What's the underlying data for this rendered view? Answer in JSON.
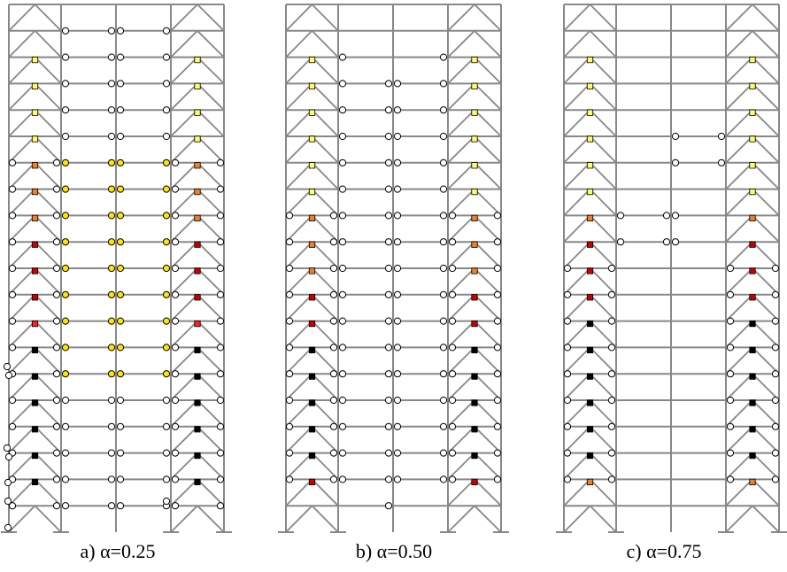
{
  "colors": {
    "frame": "#888888",
    "hinge_elastic": "#ffffff",
    "hinge_yield": "#ffe600",
    "brace_light": "#ffff66",
    "brace_orange": "#f07f2a",
    "brace_dark_red": "#cc0000",
    "brace_red": "#ff2020",
    "brace_black": "#000000"
  },
  "panels": [
    {
      "caption": "a) α=0.25",
      "brace_states": [
        "none",
        "light",
        "light",
        "light",
        "light",
        "orange",
        "orange",
        "orange",
        "red",
        "red",
        "red",
        "bright",
        "black",
        "black",
        "black",
        "black",
        "black",
        "black",
        "orange"
      ],
      "beam_hinges": [
        "w",
        "w",
        "w",
        "w",
        "w",
        "y",
        "y",
        "y",
        "y",
        "y",
        "y",
        "y",
        "y",
        "y",
        "w",
        "w",
        "w",
        "w",
        "w"
      ],
      "brace_bay_hinges": [
        0,
        0,
        0,
        0,
        0,
        1,
        1,
        1,
        1,
        1,
        1,
        1,
        1,
        1,
        1,
        1,
        1,
        1,
        1
      ]
    },
    {
      "caption": "b) α=0.50",
      "brace_states": [
        "none",
        "light",
        "light",
        "light",
        "light",
        "light",
        "light",
        "orange",
        "orange",
        "orange",
        "red",
        "red",
        "black",
        "black",
        "black",
        "black",
        "black",
        "dark",
        "light"
      ],
      "beam_hinges": [
        "-",
        "o",
        "w",
        "w",
        "w",
        "w",
        "w",
        "w",
        "w",
        "w",
        "w",
        "w",
        "w",
        "w",
        "w",
        "w",
        "w",
        "w",
        "r"
      ],
      "brace_bay_hinges": [
        0,
        0,
        0,
        0,
        0,
        0,
        0,
        1,
        1,
        1,
        1,
        1,
        1,
        1,
        1,
        1,
        1,
        1,
        0
      ]
    },
    {
      "caption": "c) α=0.75",
      "brace_states": [
        "none",
        "light",
        "light",
        "light",
        "light",
        "light",
        "light",
        "orange",
        "red",
        "red",
        "red",
        "black",
        "black",
        "black",
        "black",
        "black",
        "black",
        "orange",
        "light"
      ],
      "beam_hinges": [
        "-",
        "-",
        "-",
        "-",
        "o",
        "o",
        "-",
        "p",
        "p",
        "-",
        "-",
        "-",
        "-",
        "-",
        "-",
        "-",
        "-",
        "-",
        "-"
      ],
      "brace_bay_hinges": [
        0,
        0,
        0,
        0,
        0,
        0,
        0,
        0,
        0,
        1,
        1,
        1,
        1,
        1,
        1,
        1,
        1,
        1,
        0
      ]
    }
  ]
}
